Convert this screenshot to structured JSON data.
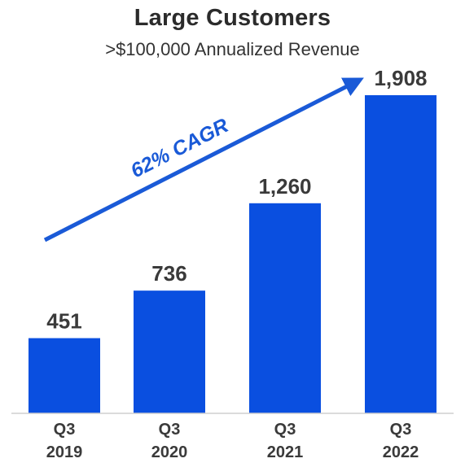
{
  "chart_data": {
    "type": "bar",
    "title": "Large Customers",
    "subtitle": ">$100,000 Annualized Revenue",
    "categories": [
      {
        "line1": "Q3",
        "line2": "2019"
      },
      {
        "line1": "Q3",
        "line2": "2020"
      },
      {
        "line1": "Q3",
        "line2": "2021"
      },
      {
        "line1": "Q3",
        "line2": "2022"
      }
    ],
    "values": [
      451,
      736,
      1260,
      1908
    ],
    "value_labels": [
      "451",
      "736",
      "1,260",
      "1,908"
    ],
    "annotation": "62% CAGR",
    "ylim": [
      0,
      1908
    ],
    "grid": false,
    "legend": "none",
    "bar_color": "#0a4fe0",
    "arrow_color": "#1a5ad7",
    "text_color": "#3a3a3a"
  }
}
